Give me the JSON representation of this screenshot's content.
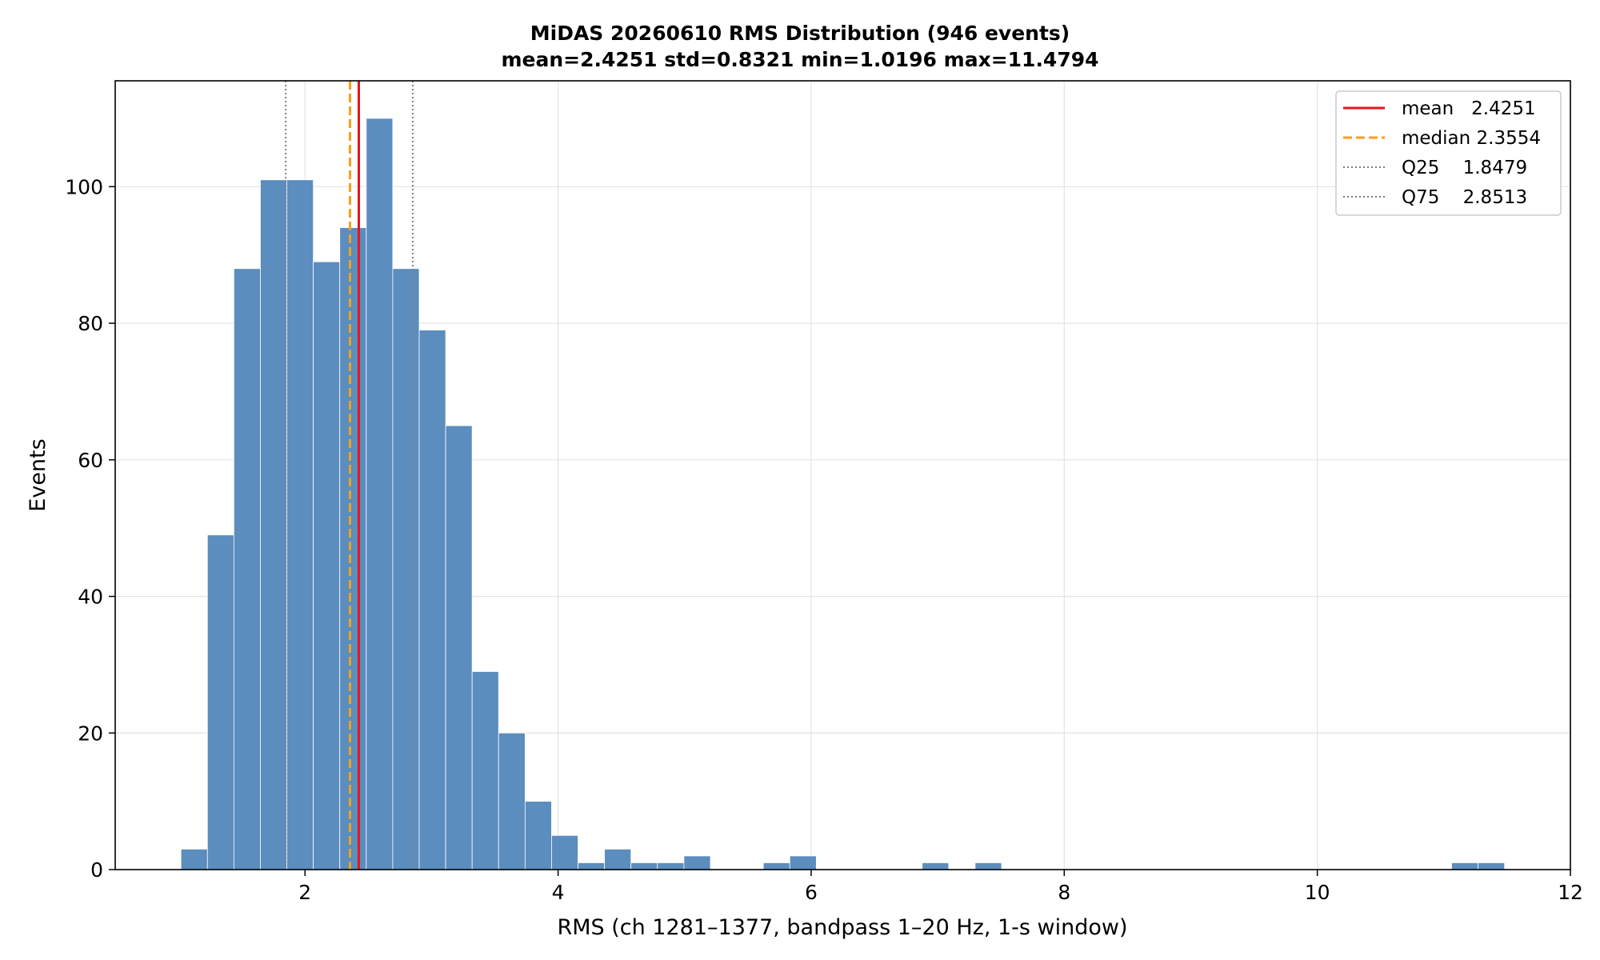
{
  "chart_data": {
    "type": "bar",
    "title": "MiDAS 20260610  RMS Distribution  (946 events)",
    "subtitle": "mean=2.4251  std=0.8321  min=1.0196  max=11.4794",
    "xlabel": "RMS  (ch 1281–1377, bandpass 1–20 Hz, 1-s window)",
    "ylabel": "Events",
    "xlim": [
      0.5,
      12
    ],
    "ylim": [
      0,
      115.5
    ],
    "xticks": [
      2,
      4,
      6,
      8,
      10,
      12
    ],
    "yticks": [
      0,
      20,
      40,
      60,
      80,
      100
    ],
    "grid": true,
    "legend_position": "top-right",
    "bar_color": "#5b8dbe",
    "bins": {
      "start": 1.0196,
      "width": 0.2092,
      "counts": [
        3,
        49,
        88,
        101,
        101,
        89,
        94,
        110,
        88,
        79,
        65,
        29,
        20,
        10,
        5,
        1,
        3,
        1,
        1,
        2,
        0,
        0,
        1,
        2,
        0,
        0,
        0,
        0,
        1,
        0,
        1,
        0,
        0,
        0,
        0,
        0,
        0,
        0,
        0,
        0,
        0,
        0,
        0,
        0,
        0,
        0,
        0,
        0,
        1,
        1
      ]
    },
    "reference_lines": [
      {
        "label": "mean   2.4251",
        "value": 2.4251,
        "color": "#e8141b",
        "style": "solid"
      },
      {
        "label": "median 2.3554",
        "value": 2.3554,
        "color": "#f5a01a",
        "style": "dashed"
      },
      {
        "label": "Q25    1.8479",
        "value": 1.8479,
        "color": "#808080",
        "style": "dotted"
      },
      {
        "label": "Q75    2.8513",
        "value": 2.8513,
        "color": "#808080",
        "style": "dotted"
      }
    ]
  }
}
